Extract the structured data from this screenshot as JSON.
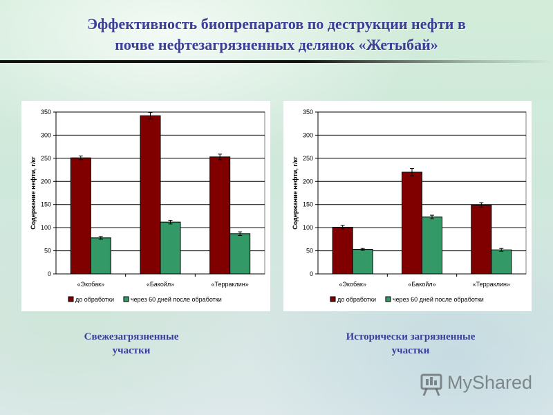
{
  "slide": {
    "title_line1": "Эффективность биопрепаратов по деструкции нефти в",
    "title_line2": "почве нефтезагрязненных делянок «Жетыбай»",
    "caption_left_line1": "Свежезагрязненные",
    "caption_left_line2": "участки",
    "caption_right_line1": "Исторически загрязненные",
    "caption_right_line2": "участки",
    "logo_text": "MyShared",
    "colors": {
      "title": "#3b3f97",
      "bar_before": "#800000",
      "bar_after": "#339966"
    }
  },
  "chart_data": [
    {
      "type": "bar",
      "ylabel": "Содержание нефти, г/кг",
      "ylim": [
        0,
        350
      ],
      "yticks": [
        0,
        50,
        100,
        150,
        200,
        250,
        300,
        350
      ],
      "grid": true,
      "legend_position": "bottom",
      "categories": [
        "«Экобак»",
        "«Бакойл»",
        "«Терраклин»"
      ],
      "series": [
        {
          "name": "до обработки",
          "color": "#800000",
          "values": [
            251,
            342,
            253
          ],
          "errors": [
            4,
            7,
            6
          ]
        },
        {
          "name": "через 60 дней после обработки",
          "color": "#339966",
          "values": [
            78,
            112,
            87
          ],
          "errors": [
            3,
            4,
            4
          ]
        }
      ]
    },
    {
      "type": "bar",
      "ylabel": "Содержание нефти, г/кг",
      "ylim": [
        0,
        350
      ],
      "yticks": [
        0,
        50,
        100,
        150,
        200,
        250,
        300,
        350
      ],
      "grid": true,
      "legend_position": "bottom",
      "categories": [
        "«Экобак»",
        "«Бакойл»",
        "«Терраклин»"
      ],
      "series": [
        {
          "name": "до обработки",
          "color": "#800000",
          "values": [
            101,
            220,
            149
          ],
          "errors": [
            4,
            8,
            5
          ]
        },
        {
          "name": "через 60 дней после обработки",
          "color": "#339966",
          "values": [
            53,
            123,
            52
          ],
          "errors": [
            2,
            4,
            3
          ]
        }
      ]
    }
  ]
}
